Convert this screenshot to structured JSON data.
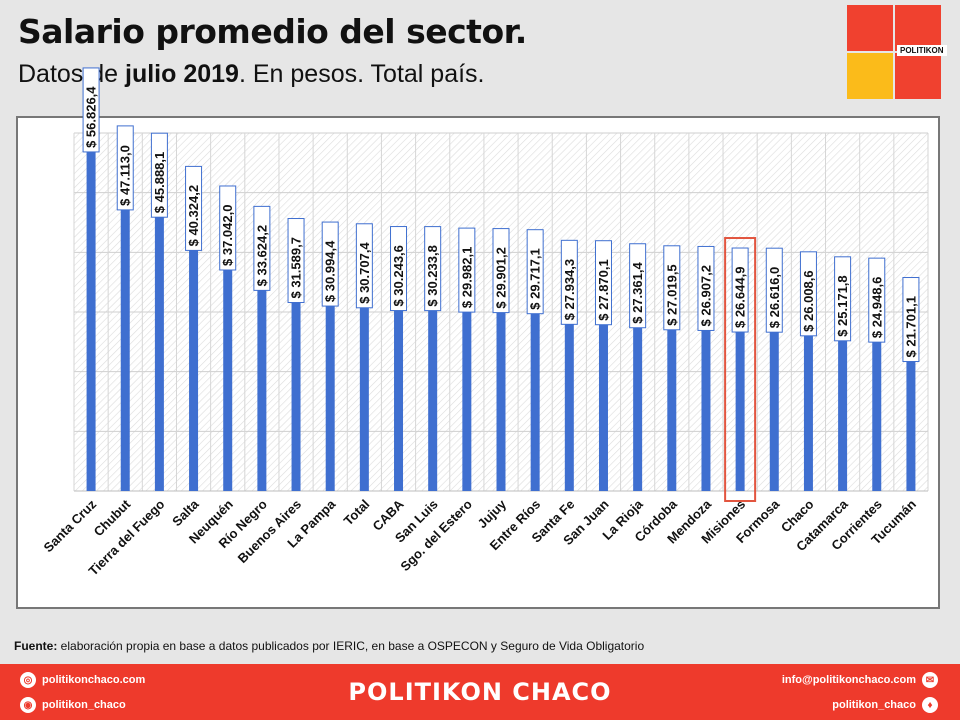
{
  "header": {
    "title": "Salario promedio del sector.",
    "subtitle_pre": "Datos de ",
    "subtitle_bold": "julio 2019",
    "subtitle_post": ". En pesos. Total país."
  },
  "logo": {
    "text": "POLITIKON",
    "colors": [
      "#f0412f",
      "#fbbb1a"
    ]
  },
  "chart_data": {
    "type": "bar",
    "categories": [
      "Santa Cruz",
      "Chubut",
      "Tierra del Fuego",
      "Salta",
      "Neuquén",
      "Río Negro",
      "Buenos Aires",
      "La Pampa",
      "Total",
      "CABA",
      "San Luis",
      "Sgo. del Estero",
      "Jujuy",
      "Entre Ríos",
      "Santa Fe",
      "San Juan",
      "La Rioja",
      "Córdoba",
      "Mendoza",
      "Misiones",
      "Formosa",
      "Chaco",
      "Catamarca",
      "Corrientes",
      "Tucumán"
    ],
    "values": [
      56826.4,
      47113.0,
      45888.1,
      40324.2,
      37042.0,
      33624.2,
      31589.7,
      30994.4,
      30707.4,
      30243.6,
      30233.8,
      29982.1,
      29901.2,
      29717.1,
      27934.3,
      27870.1,
      27361.4,
      27019.5,
      26907.2,
      26644.9,
      26616.0,
      26008.6,
      25171.8,
      24948.6,
      21701.1
    ],
    "labels": [
      "$ 56.826,4",
      "$ 47.113,0",
      "$ 45.888,1",
      "$ 40.324,2",
      "$ 37.042,0",
      "$ 33.624,2",
      "$ 31.589,7",
      "$ 30.994,4",
      "$ 30.707,4",
      "$ 30.243,6",
      "$ 30.233,8",
      "$ 29.982,1",
      "$ 29.901,2",
      "$ 29.717,1",
      "$ 27.934,3",
      "$ 27.870,1",
      "$ 27.361,4",
      "$ 27.019,5",
      "$ 26.907,2",
      "$ 26.644,9",
      "$ 26.616,0",
      "$ 26.008,6",
      "$ 25.171,8",
      "$ 24.948,6",
      "$ 21.701,1"
    ],
    "highlight": "Misiones",
    "ylim": [
      0,
      60000
    ],
    "grid": true,
    "bar_color": "#3f6fd0",
    "highlight_color": "#e2553f"
  },
  "source": {
    "label": "Fuente:",
    "text": " elaboración propia en base a datos publicados por IERIC, en base a OSPECON y Seguro de Vida Obligatorio"
  },
  "footer": {
    "brand": "POLITIKON CHACO",
    "website": "politikonchaco.com",
    "instagram": "politikon_chaco",
    "email": "info@politikonchaco.com",
    "twitter": "politikon_chaco"
  }
}
